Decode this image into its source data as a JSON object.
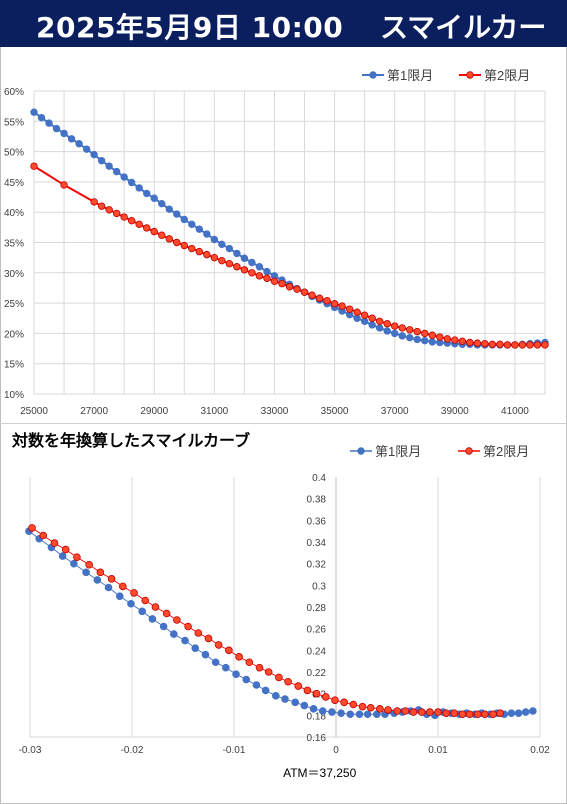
{
  "header": {
    "date_time": "2025年5月9日 10:00",
    "title": "スマイルカーブ"
  },
  "colors": {
    "header_bg": "#0b1f5f",
    "series1": "#4472c4",
    "series2": "#ff0000",
    "series2_fill": "#ff4b2b"
  },
  "chart_data": [
    {
      "type": "line",
      "title": "",
      "xlabel": "",
      "ylabel": "",
      "xlim": [
        25000,
        42000
      ],
      "ylim": [
        0.1,
        0.6
      ],
      "x_ticks": [
        "25000",
        "27000",
        "29000",
        "31000",
        "33000",
        "35000",
        "37000",
        "39000",
        "41000"
      ],
      "y_ticks": [
        "10%",
        "15%",
        "20%",
        "25%",
        "30%",
        "35%",
        "40%",
        "45%",
        "50%",
        "55%",
        "60%"
      ],
      "legend_position": "top-right",
      "grid": true,
      "series": [
        {
          "name": "第1限月",
          "x": [
            25000,
            25250,
            25500,
            25750,
            26000,
            26250,
            26500,
            26750,
            27000,
            27250,
            27500,
            27750,
            28000,
            28250,
            28500,
            28750,
            29000,
            29250,
            29500,
            29750,
            30000,
            30250,
            30500,
            30750,
            31000,
            31250,
            31500,
            31750,
            32000,
            32250,
            32500,
            32750,
            33000,
            33250,
            33500,
            33750,
            34000,
            34250,
            34500,
            34750,
            35000,
            35250,
            35500,
            35750,
            36000,
            36250,
            36500,
            36750,
            37000,
            37250,
            37500,
            37750,
            38000,
            38250,
            38500,
            38750,
            39000,
            39250,
            39500,
            39750,
            40000,
            40250,
            40500,
            40750,
            41000,
            41250,
            41500,
            41750,
            42000
          ],
          "y": [
            0.565,
            0.556,
            0.547,
            0.538,
            0.53,
            0.521,
            0.513,
            0.504,
            0.495,
            0.485,
            0.476,
            0.467,
            0.458,
            0.449,
            0.44,
            0.431,
            0.423,
            0.414,
            0.405,
            0.397,
            0.388,
            0.38,
            0.372,
            0.364,
            0.355,
            0.347,
            0.34,
            0.332,
            0.324,
            0.317,
            0.31,
            0.302,
            0.295,
            0.288,
            0.281,
            0.274,
            0.268,
            0.261,
            0.255,
            0.249,
            0.243,
            0.237,
            0.231,
            0.225,
            0.22,
            0.214,
            0.209,
            0.204,
            0.2,
            0.196,
            0.193,
            0.19,
            0.188,
            0.186,
            0.185,
            0.184,
            0.183,
            0.182,
            0.182,
            0.181,
            0.181,
            0.181,
            0.181,
            0.181,
            0.181,
            0.182,
            0.183,
            0.184,
            0.185
          ]
        },
        {
          "name": "第2限月",
          "x": [
            25000,
            26000,
            27000,
            27250,
            27500,
            27750,
            28000,
            28250,
            28500,
            28750,
            29000,
            29250,
            29500,
            29750,
            30000,
            30250,
            30500,
            30750,
            31000,
            31250,
            31500,
            31750,
            32000,
            32250,
            32500,
            32750,
            33000,
            33250,
            33500,
            33750,
            34000,
            34250,
            34500,
            34750,
            35000,
            35250,
            35500,
            35750,
            36000,
            36250,
            36500,
            36750,
            37000,
            37250,
            37500,
            37750,
            38000,
            38250,
            38500,
            38750,
            39000,
            39250,
            39500,
            39750,
            40000,
            40250,
            40500,
            40750,
            41000,
            41250,
            41500,
            41750,
            42000
          ],
          "y": [
            0.476,
            0.445,
            0.417,
            0.41,
            0.404,
            0.398,
            0.392,
            0.386,
            0.38,
            0.374,
            0.368,
            0.362,
            0.356,
            0.35,
            0.345,
            0.34,
            0.335,
            0.33,
            0.325,
            0.32,
            0.315,
            0.31,
            0.305,
            0.3,
            0.295,
            0.291,
            0.286,
            0.282,
            0.277,
            0.273,
            0.268,
            0.263,
            0.258,
            0.254,
            0.249,
            0.245,
            0.24,
            0.235,
            0.23,
            0.225,
            0.22,
            0.216,
            0.212,
            0.209,
            0.206,
            0.203,
            0.2,
            0.197,
            0.194,
            0.191,
            0.189,
            0.187,
            0.185,
            0.184,
            0.183,
            0.182,
            0.182,
            0.181,
            0.181,
            0.181,
            0.181,
            0.181,
            0.181
          ]
        }
      ]
    },
    {
      "type": "scatter",
      "title": "対数を年換算したスマイルカーブ",
      "xlabel": "ATM＝37,250",
      "ylabel": "",
      "xlim": [
        -0.03,
        0.02
      ],
      "ylim": [
        0.16,
        0.4
      ],
      "x_ticks": [
        "-0.03",
        "-0.02",
        "-0.01",
        "0",
        "0.01",
        "0.02"
      ],
      "y_ticks": [
        "0.16",
        "0.18",
        "0.2",
        "0.22",
        "0.24",
        "0.26",
        "0.28",
        "0.3",
        "0.32",
        "0.34",
        "0.36",
        "0.38",
        "0.4"
      ],
      "legend_position": "top-right",
      "grid": true,
      "series": [
        {
          "name": "第1限月",
          "x": [
            -0.0301,
            -0.0291,
            -0.0279,
            -0.0268,
            -0.0257,
            -0.0245,
            -0.0234,
            -0.0223,
            -0.0212,
            -0.0201,
            -0.019,
            -0.018,
            -0.0169,
            -0.0159,
            -0.0148,
            -0.0138,
            -0.0128,
            -0.0118,
            -0.0108,
            -0.0098,
            -0.0088,
            -0.0078,
            -0.0069,
            -0.0059,
            -0.005,
            -0.004,
            -0.0031,
            -0.0022,
            -0.0013,
            -0.0004,
            0.0005,
            0.0014,
            0.0023,
            0.0031,
            0.004,
            0.0048,
            0.0057,
            0.0065,
            0.0073,
            0.0081,
            0.0089,
            0.0097,
            0.0105,
            0.0113,
            0.0121,
            0.0128,
            0.0136,
            0.0143,
            0.0151,
            0.0158,
            0.0165,
            0.0172,
            0.0179,
            0.0186,
            0.0193
          ],
          "y": [
            0.35,
            0.343,
            0.335,
            0.327,
            0.32,
            0.312,
            0.305,
            0.298,
            0.29,
            0.283,
            0.276,
            0.269,
            0.262,
            0.255,
            0.249,
            0.242,
            0.236,
            0.229,
            0.224,
            0.218,
            0.213,
            0.208,
            0.203,
            0.198,
            0.195,
            0.192,
            0.189,
            0.186,
            0.184,
            0.183,
            0.182,
            0.181,
            0.181,
            0.181,
            0.181,
            0.181,
            0.182,
            0.183,
            0.184,
            0.185,
            0.181,
            0.18,
            0.183,
            0.182,
            0.181,
            0.182,
            0.181,
            0.182,
            0.181,
            0.182,
            0.181,
            0.182,
            0.182,
            0.183,
            0.184
          ]
        },
        {
          "name": "第2限月",
          "x": [
            -0.0298,
            -0.0287,
            -0.0276,
            -0.0265,
            -0.0254,
            -0.0242,
            -0.0231,
            -0.022,
            -0.0209,
            -0.0198,
            -0.0187,
            -0.0177,
            -0.0166,
            -0.0156,
            -0.0145,
            -0.0135,
            -0.0125,
            -0.0115,
            -0.0105,
            -0.0095,
            -0.0085,
            -0.0075,
            -0.0066,
            -0.0056,
            -0.0047,
            -0.0037,
            -0.0028,
            -0.0019,
            -0.001,
            -0.0001,
            0.0008,
            0.0017,
            0.0026,
            0.0034,
            0.0043,
            0.0051,
            0.006,
            0.0068,
            0.0076,
            0.0084,
            0.0092,
            0.01,
            0.0108,
            0.0116,
            0.0124,
            0.0131,
            0.0139,
            0.0146,
            0.0154,
            0.0161
          ],
          "y": [
            0.353,
            0.346,
            0.339,
            0.333,
            0.326,
            0.319,
            0.312,
            0.306,
            0.299,
            0.293,
            0.286,
            0.28,
            0.274,
            0.268,
            0.262,
            0.256,
            0.251,
            0.245,
            0.24,
            0.234,
            0.229,
            0.224,
            0.22,
            0.215,
            0.211,
            0.207,
            0.203,
            0.2,
            0.197,
            0.194,
            0.192,
            0.19,
            0.188,
            0.187,
            0.186,
            0.185,
            0.184,
            0.184,
            0.183,
            0.183,
            0.183,
            0.183,
            0.182,
            0.182,
            0.181,
            0.181,
            0.181,
            0.181,
            0.181,
            0.182
          ]
        }
      ]
    }
  ]
}
